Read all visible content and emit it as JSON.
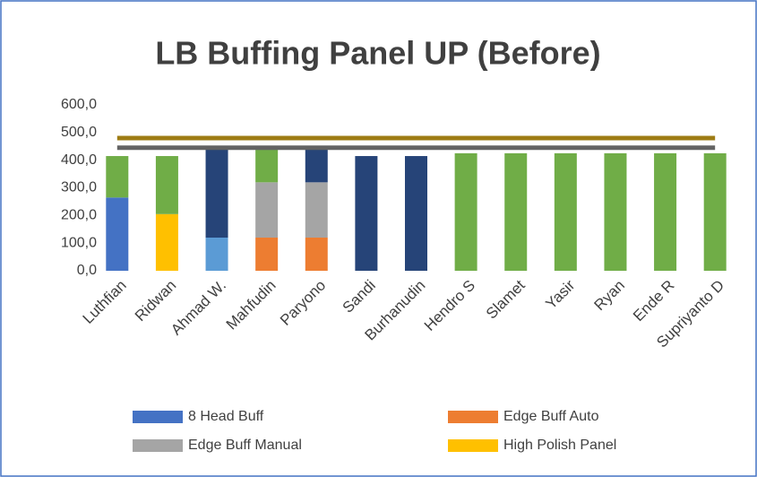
{
  "chart_data": {
    "type": "bar",
    "stacked": true,
    "title": "LB Buffing Panel UP (Before)",
    "categories": [
      "Luthfian",
      "Ridwan",
      "Ahmad W.",
      "Mahfudin",
      "Paryono",
      "Sandi",
      "Burhanudin",
      "Hendro S",
      "Slamet",
      "Yasir",
      "Ryan",
      "Ende R",
      "Supriyanto D"
    ],
    "series": [
      {
        "name": "8 Head Buff",
        "color": "#4472c4",
        "values": [
          265,
          null,
          null,
          null,
          null,
          null,
          null,
          null,
          null,
          null,
          null,
          null,
          null
        ]
      },
      {
        "name": "Edge Buff Auto",
        "color": "#ed7d31",
        "values": [
          null,
          null,
          null,
          120,
          120,
          null,
          null,
          null,
          null,
          null,
          null,
          null,
          null
        ]
      },
      {
        "name": "Edge Buff Manual",
        "color": "#a5a5a5",
        "values": [
          null,
          null,
          null,
          200,
          200,
          null,
          null,
          null,
          null,
          null,
          null,
          null,
          null
        ]
      },
      {
        "name": "High Polish Panel",
        "color": "#ffc000",
        "values": [
          null,
          205,
          null,
          null,
          null,
          null,
          null,
          null,
          null,
          null,
          null,
          null,
          null
        ]
      },
      {
        "color": "#5b9bd5",
        "values": [
          null,
          null,
          120,
          null,
          null,
          null,
          null,
          null,
          null,
          null,
          null,
          null,
          null
        ]
      },
      {
        "color": "#264478",
        "values": [
          null,
          null,
          320,
          null,
          120,
          415,
          415,
          null,
          null,
          null,
          null,
          null,
          null
        ]
      },
      {
        "color": "#70ad47",
        "values": [
          150,
          210,
          null,
          120,
          null,
          null,
          null,
          425,
          425,
          425,
          425,
          425,
          425
        ]
      },
      {
        "type": "line",
        "color": "#9e7c14",
        "values": [
          480,
          480,
          480,
          480,
          480,
          480,
          480,
          480,
          480,
          480,
          480,
          480,
          480
        ]
      },
      {
        "type": "line",
        "color": "#636363",
        "values": [
          445,
          445,
          445,
          445,
          445,
          445,
          445,
          445,
          445,
          445,
          445,
          445,
          445
        ]
      }
    ],
    "ylim": [
      0,
      600
    ],
    "yticks": [
      {
        "value": 0,
        "label": "0,0"
      },
      {
        "value": 100,
        "label": "100,0"
      },
      {
        "value": 200,
        "label": "200,0"
      },
      {
        "value": 300,
        "label": "300,0"
      },
      {
        "value": 400,
        "label": "400,0"
      },
      {
        "value": 500,
        "label": "500,0"
      },
      {
        "value": 600,
        "label": "600,0"
      }
    ],
    "grid": false,
    "legend": "bottom"
  }
}
